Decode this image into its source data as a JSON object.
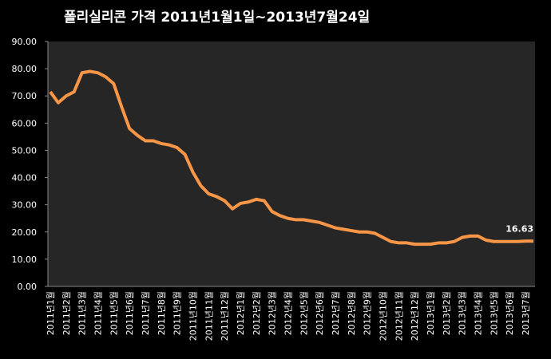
{
  "chart_data": {
    "type": "line",
    "title": "폴리실리콘 가격   2011년1월1일~2013년7월24일",
    "categories": [
      "2011년1월",
      null,
      "2011년2월",
      null,
      "2011년3월",
      null,
      "2011년4월",
      null,
      "2011년5월",
      null,
      "2011년6월",
      null,
      "2011년7월",
      null,
      "2011년8월",
      null,
      "2011년9월",
      null,
      "2011년10월",
      null,
      "2011년11월",
      null,
      "2011년12월",
      null,
      "2012년1월",
      null,
      "2012년2월",
      null,
      "2012년3월",
      null,
      "2012년4월",
      null,
      "2012년5월",
      null,
      "2012년6월",
      null,
      "2012년7월",
      null,
      "2012년8월",
      null,
      "2012년9월",
      null,
      "2012년10월",
      null,
      "2012년11월",
      null,
      "2012년12월",
      null,
      "2013년1월",
      null,
      "2013년2월",
      null,
      "2013년3월",
      null,
      "2013년4월",
      null,
      "2013년5월",
      null,
      "2013년6월",
      null,
      "2013년7월",
      null
    ],
    "series": [
      {
        "name": "폴리실리콘 가격",
        "color": "#f79646",
        "values": [
          71.5,
          67.5,
          70,
          71.5,
          78.5,
          79,
          78.5,
          77,
          74.5,
          66,
          58,
          55.5,
          53.5,
          53.5,
          52.5,
          52,
          51,
          48.5,
          42,
          37,
          34,
          33,
          31.5,
          28.5,
          30.5,
          31,
          32,
          31.5,
          27.5,
          26,
          25,
          24.5,
          24.5,
          24,
          23.5,
          22.5,
          21.5,
          21,
          20.5,
          20,
          20,
          19.5,
          18,
          16.5,
          16,
          16,
          15.5,
          15.5,
          15.5,
          16,
          16,
          16.5,
          18,
          18.5,
          18.5,
          17,
          16.5,
          16.5,
          16.5,
          16.5,
          16.63,
          16.63
        ]
      }
    ],
    "ylim": [
      0,
      90
    ],
    "yticks": [
      {
        "value": 0,
        "label": "0.00"
      },
      {
        "value": 10,
        "label": "10.00"
      },
      {
        "value": 20,
        "label": "20.00"
      },
      {
        "value": 30,
        "label": "30.00"
      },
      {
        "value": 40,
        "label": "40.00"
      },
      {
        "value": 50,
        "label": "50.00"
      },
      {
        "value": 60,
        "label": "60.00"
      },
      {
        "value": 70,
        "label": "70.00"
      },
      {
        "value": 80,
        "label": "80.00"
      },
      {
        "value": 90,
        "label": "90.00"
      }
    ],
    "grid": false
  }
}
